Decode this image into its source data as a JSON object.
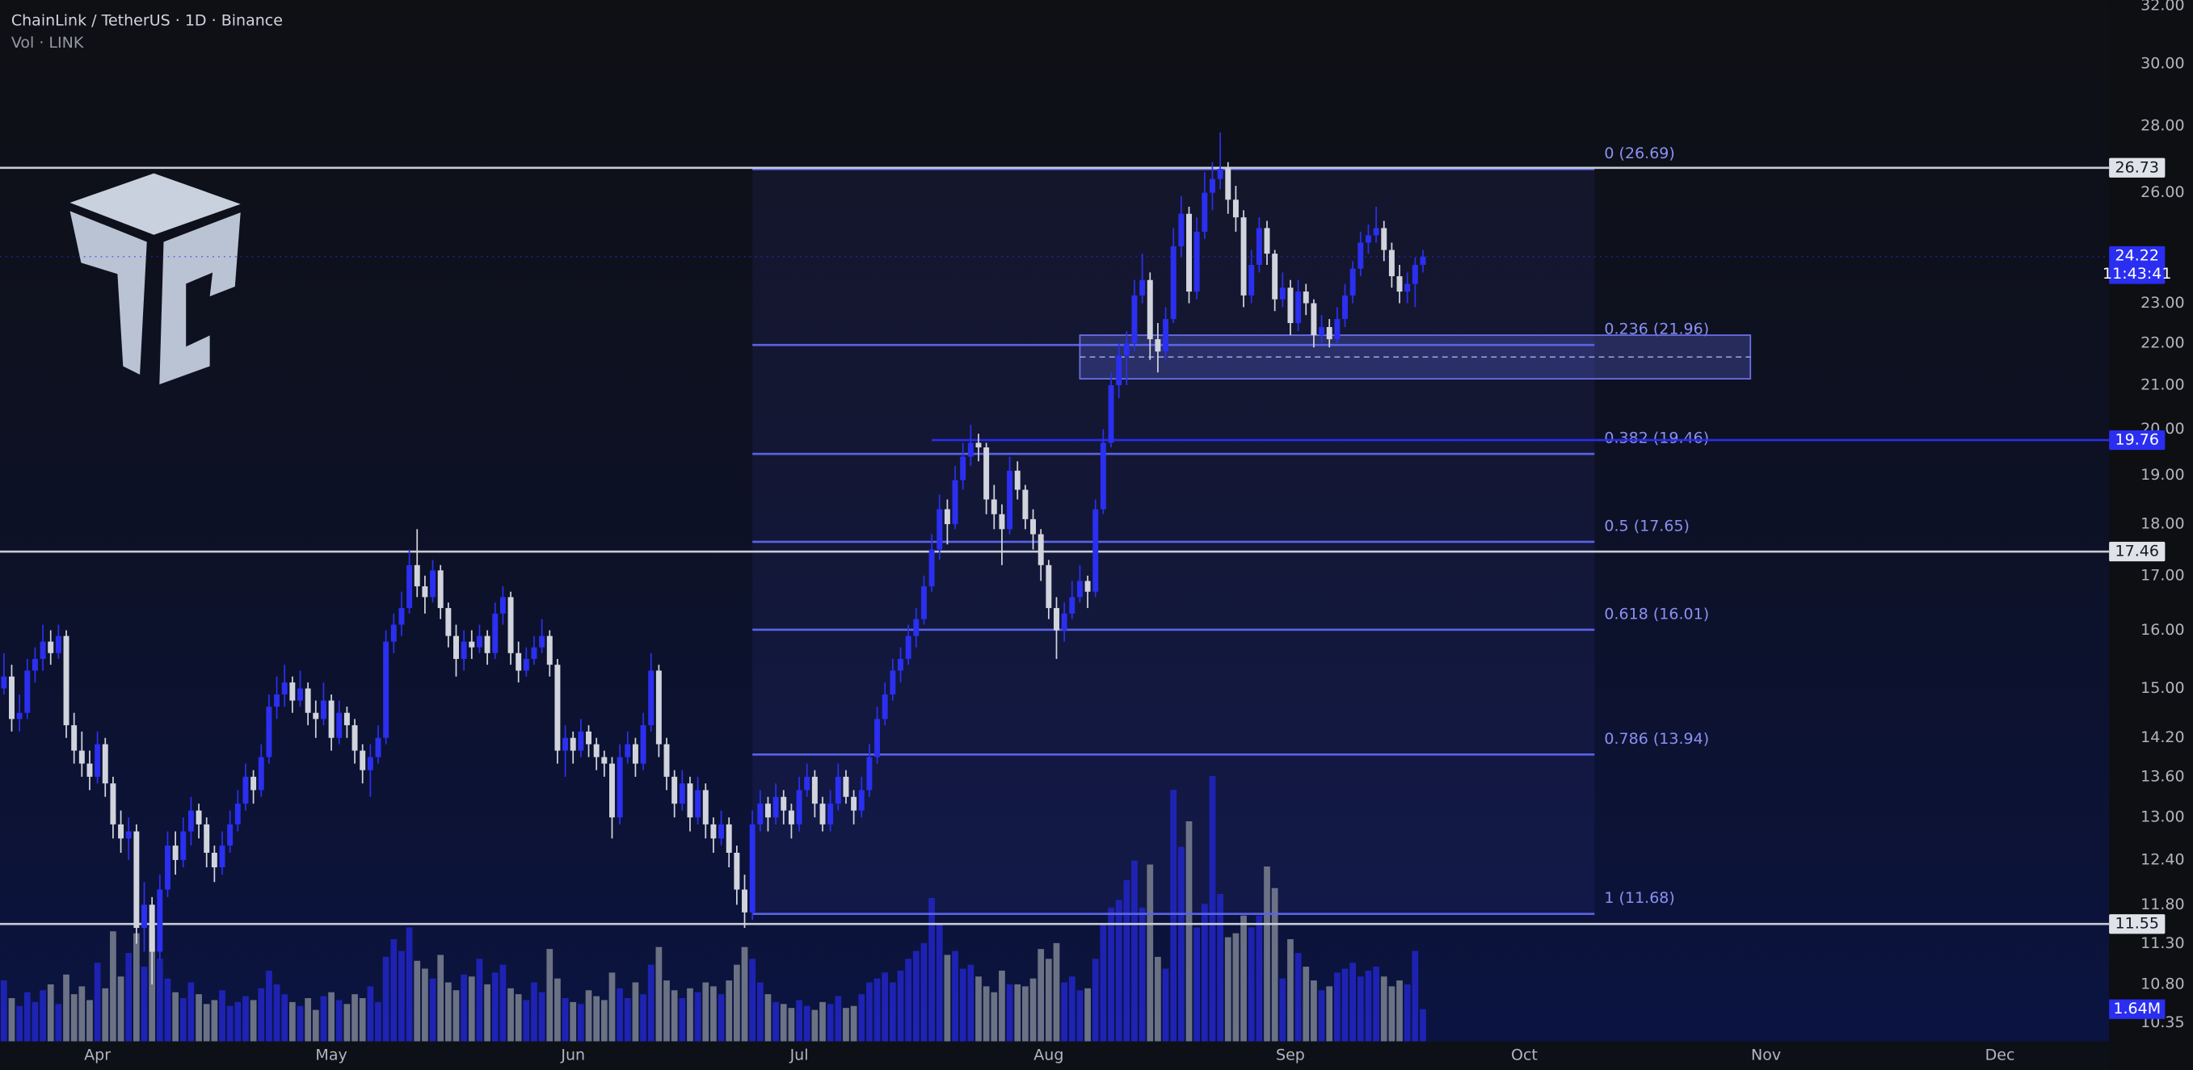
{
  "chart_data": {
    "type": "candlestick",
    "title": "ChainLink / TetherUS · 1D · Binance",
    "subtitle": "Vol · LINK",
    "log_scale": true,
    "grid": false,
    "up_color": "#2b2ff0",
    "down_color": "#d1d4dc",
    "ylim": [
      10.14,
      32.2
    ],
    "yticks": [
      {
        "value": 32,
        "label": "32.00"
      },
      {
        "value": 30,
        "label": "30.00"
      },
      {
        "value": 28,
        "label": "28.00"
      },
      {
        "value": 26,
        "label": "26.00"
      },
      {
        "value": 23,
        "label": "23.00"
      },
      {
        "value": 22,
        "label": "22.00"
      },
      {
        "value": 21,
        "label": "21.00"
      },
      {
        "value": 20,
        "label": "20.00"
      },
      {
        "value": 19,
        "label": "19.00"
      },
      {
        "value": 18,
        "label": "18.00"
      },
      {
        "value": 17,
        "label": "17.00"
      },
      {
        "value": 16,
        "label": "16.00"
      },
      {
        "value": 15,
        "label": "15.00"
      },
      {
        "value": 14.2,
        "label": "14.20"
      },
      {
        "value": 13.6,
        "label": "13.60"
      },
      {
        "value": 13,
        "label": "13.00"
      },
      {
        "value": 12.4,
        "label": "12.40"
      },
      {
        "value": 11.8,
        "label": "11.80"
      },
      {
        "value": 11.3,
        "label": "11.30"
      },
      {
        "value": 10.8,
        "label": "10.80"
      },
      {
        "value": 10.35,
        "label": "10.35"
      }
    ],
    "xlim": [
      -0.5,
      270
    ],
    "xticks": [
      {
        "value": 12,
        "label": "Apr"
      },
      {
        "value": 42,
        "label": "May"
      },
      {
        "value": 73,
        "label": "Jun"
      },
      {
        "value": 102,
        "label": "Jul"
      },
      {
        "value": 134,
        "label": "Aug"
      },
      {
        "value": 165,
        "label": "Sep"
      },
      {
        "value": 195,
        "label": "Oct"
      },
      {
        "value": 226,
        "label": "Nov"
      },
      {
        "value": 256,
        "label": "Dec"
      }
    ],
    "candles": [
      [
        15.0,
        15.6,
        14.9,
        15.2
      ],
      [
        15.2,
        15.4,
        14.3,
        14.5
      ],
      [
        14.5,
        14.9,
        14.3,
        14.6
      ],
      [
        14.6,
        15.5,
        14.5,
        15.3
      ],
      [
        15.3,
        15.7,
        15.1,
        15.5
      ],
      [
        15.5,
        16.1,
        15.3,
        15.8
      ],
      [
        15.8,
        16.0,
        15.4,
        15.6
      ],
      [
        15.6,
        16.1,
        15.5,
        15.9
      ],
      [
        15.9,
        16.0,
        14.2,
        14.4
      ],
      [
        14.4,
        14.6,
        13.8,
        14.0
      ],
      [
        14.0,
        14.3,
        13.6,
        13.8
      ],
      [
        13.8,
        14.0,
        13.4,
        13.6
      ],
      [
        13.6,
        14.3,
        13.5,
        14.1
      ],
      [
        14.1,
        14.2,
        13.3,
        13.5
      ],
      [
        13.5,
        13.6,
        12.7,
        12.9
      ],
      [
        12.9,
        13.1,
        12.5,
        12.7
      ],
      [
        12.7,
        13.0,
        12.4,
        12.8
      ],
      [
        12.8,
        12.9,
        11.3,
        11.5
      ],
      [
        11.5,
        12.1,
        11.2,
        11.8
      ],
      [
        11.8,
        11.9,
        10.8,
        11.2
      ],
      [
        11.2,
        12.2,
        11.1,
        12.0
      ],
      [
        12.0,
        12.8,
        11.9,
        12.6
      ],
      [
        12.6,
        12.8,
        12.2,
        12.4
      ],
      [
        12.4,
        13.0,
        12.3,
        12.8
      ],
      [
        12.8,
        13.3,
        12.6,
        13.1
      ],
      [
        13.1,
        13.2,
        12.7,
        12.9
      ],
      [
        12.9,
        13.0,
        12.3,
        12.5
      ],
      [
        12.5,
        12.6,
        12.1,
        12.3
      ],
      [
        12.3,
        12.8,
        12.2,
        12.6
      ],
      [
        12.6,
        13.1,
        12.5,
        12.9
      ],
      [
        12.9,
        13.4,
        12.8,
        13.2
      ],
      [
        13.2,
        13.8,
        13.1,
        13.6
      ],
      [
        13.6,
        13.7,
        13.2,
        13.4
      ],
      [
        13.4,
        14.1,
        13.3,
        13.9
      ],
      [
        13.9,
        14.9,
        13.8,
        14.7
      ],
      [
        14.7,
        15.2,
        14.5,
        14.9
      ],
      [
        14.9,
        15.4,
        14.7,
        15.1
      ],
      [
        15.1,
        15.2,
        14.6,
        14.8
      ],
      [
        14.8,
        15.3,
        14.7,
        15.0
      ],
      [
        15.0,
        15.1,
        14.4,
        14.6
      ],
      [
        14.6,
        14.8,
        14.2,
        14.5
      ],
      [
        14.5,
        15.1,
        14.4,
        14.8
      ],
      [
        14.8,
        14.9,
        14.0,
        14.2
      ],
      [
        14.2,
        14.8,
        14.1,
        14.6
      ],
      [
        14.6,
        14.7,
        14.2,
        14.4
      ],
      [
        14.4,
        14.5,
        13.8,
        14.0
      ],
      [
        14.0,
        14.1,
        13.5,
        13.7
      ],
      [
        13.7,
        14.1,
        13.3,
        13.9
      ],
      [
        13.9,
        14.4,
        13.8,
        14.2
      ],
      [
        14.2,
        16.0,
        14.1,
        15.8
      ],
      [
        15.8,
        16.3,
        15.6,
        16.1
      ],
      [
        16.1,
        16.7,
        15.9,
        16.4
      ],
      [
        16.4,
        17.5,
        16.3,
        17.2
      ],
      [
        17.2,
        17.9,
        16.6,
        16.8
      ],
      [
        16.8,
        17.0,
        16.3,
        16.6
      ],
      [
        16.6,
        17.3,
        16.5,
        17.1
      ],
      [
        17.1,
        17.2,
        16.2,
        16.4
      ],
      [
        16.4,
        16.5,
        15.7,
        15.9
      ],
      [
        15.9,
        16.1,
        15.2,
        15.5
      ],
      [
        15.5,
        16.0,
        15.3,
        15.8
      ],
      [
        15.8,
        16.0,
        15.5,
        15.7
      ],
      [
        15.7,
        16.1,
        15.6,
        15.9
      ],
      [
        15.9,
        16.0,
        15.4,
        15.6
      ],
      [
        15.6,
        16.5,
        15.5,
        16.3
      ],
      [
        16.3,
        16.8,
        16.1,
        16.6
      ],
      [
        16.6,
        16.7,
        15.4,
        15.6
      ],
      [
        15.6,
        15.8,
        15.1,
        15.3
      ],
      [
        15.3,
        15.7,
        15.2,
        15.5
      ],
      [
        15.5,
        15.9,
        15.4,
        15.7
      ],
      [
        15.7,
        16.2,
        15.6,
        15.9
      ],
      [
        15.9,
        16.0,
        15.2,
        15.4
      ],
      [
        15.4,
        15.5,
        13.8,
        14.0
      ],
      [
        14.0,
        14.4,
        13.6,
        14.2
      ],
      [
        14.2,
        14.3,
        13.8,
        14.0
      ],
      [
        14.0,
        14.5,
        13.9,
        14.3
      ],
      [
        14.3,
        14.4,
        13.9,
        14.1
      ],
      [
        14.1,
        14.2,
        13.7,
        13.9
      ],
      [
        13.9,
        14.0,
        13.6,
        13.8
      ],
      [
        13.8,
        13.9,
        12.7,
        13.0
      ],
      [
        13.0,
        14.1,
        12.9,
        13.9
      ],
      [
        13.9,
        14.3,
        13.8,
        14.1
      ],
      [
        14.1,
        14.2,
        13.6,
        13.8
      ],
      [
        13.8,
        14.6,
        13.7,
        14.4
      ],
      [
        14.4,
        15.6,
        14.3,
        15.3
      ],
      [
        15.3,
        15.4,
        13.9,
        14.1
      ],
      [
        14.1,
        14.2,
        13.4,
        13.6
      ],
      [
        13.6,
        13.7,
        13.0,
        13.2
      ],
      [
        13.2,
        13.7,
        13.1,
        13.5
      ],
      [
        13.5,
        13.6,
        12.8,
        13.0
      ],
      [
        13.0,
        13.6,
        12.9,
        13.4
      ],
      [
        13.4,
        13.5,
        12.7,
        12.9
      ],
      [
        12.9,
        13.0,
        12.5,
        12.7
      ],
      [
        12.7,
        13.1,
        12.6,
        12.9
      ],
      [
        12.9,
        13.0,
        12.3,
        12.5
      ],
      [
        12.5,
        12.6,
        11.8,
        12.0
      ],
      [
        12.0,
        12.2,
        11.5,
        11.7
      ],
      [
        11.7,
        13.1,
        11.6,
        12.9
      ],
      [
        12.9,
        13.4,
        12.8,
        13.2
      ],
      [
        13.2,
        13.3,
        12.8,
        13.0
      ],
      [
        13.0,
        13.5,
        12.9,
        13.3
      ],
      [
        13.3,
        13.4,
        12.9,
        13.1
      ],
      [
        13.1,
        13.2,
        12.7,
        12.9
      ],
      [
        12.9,
        13.6,
        12.8,
        13.4
      ],
      [
        13.4,
        13.8,
        13.3,
        13.6
      ],
      [
        13.6,
        13.7,
        13.0,
        13.2
      ],
      [
        13.2,
        13.3,
        12.8,
        12.9
      ],
      [
        12.9,
        13.4,
        12.8,
        13.2
      ],
      [
        13.2,
        13.8,
        13.1,
        13.6
      ],
      [
        13.6,
        13.7,
        13.2,
        13.3
      ],
      [
        13.3,
        13.4,
        12.9,
        13.1
      ],
      [
        13.1,
        13.6,
        13.0,
        13.4
      ],
      [
        13.4,
        14.1,
        13.3,
        13.9
      ],
      [
        13.9,
        14.7,
        13.8,
        14.5
      ],
      [
        14.5,
        15.1,
        14.4,
        14.9
      ],
      [
        14.9,
        15.5,
        14.8,
        15.3
      ],
      [
        15.3,
        15.7,
        15.1,
        15.5
      ],
      [
        15.5,
        16.1,
        15.4,
        15.9
      ],
      [
        15.9,
        16.4,
        15.7,
        16.2
      ],
      [
        16.2,
        17.0,
        16.1,
        16.8
      ],
      [
        16.8,
        17.8,
        16.7,
        17.5
      ],
      [
        17.5,
        18.6,
        17.3,
        18.3
      ],
      [
        18.3,
        18.5,
        17.6,
        18.0
      ],
      [
        18.0,
        19.2,
        17.9,
        18.9
      ],
      [
        18.9,
        19.7,
        18.7,
        19.4
      ],
      [
        19.4,
        20.1,
        19.2,
        19.7
      ],
      [
        19.7,
        19.9,
        19.3,
        19.6
      ],
      [
        19.6,
        19.7,
        18.2,
        18.5
      ],
      [
        18.5,
        18.8,
        17.9,
        18.2
      ],
      [
        18.2,
        18.4,
        17.2,
        17.9
      ],
      [
        17.9,
        19.4,
        17.8,
        19.1
      ],
      [
        19.1,
        19.3,
        18.5,
        18.7
      ],
      [
        18.7,
        18.8,
        17.9,
        18.1
      ],
      [
        18.1,
        18.3,
        17.5,
        17.8
      ],
      [
        17.8,
        17.9,
        16.9,
        17.2
      ],
      [
        17.2,
        17.3,
        16.2,
        16.4
      ],
      [
        16.4,
        16.6,
        15.5,
        16.0
      ],
      [
        16.0,
        16.5,
        15.8,
        16.3
      ],
      [
        16.3,
        16.9,
        16.2,
        16.6
      ],
      [
        16.6,
        17.2,
        16.5,
        16.9
      ],
      [
        16.9,
        17.0,
        16.4,
        16.7
      ],
      [
        16.7,
        18.5,
        16.6,
        18.3
      ],
      [
        18.3,
        20.0,
        18.2,
        19.7
      ],
      [
        19.7,
        21.3,
        19.6,
        21.0
      ],
      [
        21.0,
        22.0,
        20.7,
        21.7
      ],
      [
        21.7,
        22.3,
        21.0,
        22.0
      ],
      [
        22.0,
        23.6,
        21.8,
        23.2
      ],
      [
        23.2,
        24.3,
        23.0,
        23.6
      ],
      [
        23.6,
        23.8,
        21.6,
        22.1
      ],
      [
        22.1,
        22.5,
        21.3,
        21.8
      ],
      [
        21.8,
        22.9,
        21.6,
        22.6
      ],
      [
        22.6,
        25.0,
        22.5,
        24.5
      ],
      [
        24.5,
        25.9,
        24.2,
        25.4
      ],
      [
        25.4,
        25.6,
        23.0,
        23.3
      ],
      [
        23.3,
        25.3,
        23.1,
        24.9
      ],
      [
        24.9,
        26.6,
        24.7,
        26.0
      ],
      [
        26.0,
        26.9,
        25.5,
        26.4
      ],
      [
        26.4,
        27.8,
        26.1,
        26.7
      ],
      [
        26.7,
        26.9,
        25.4,
        25.8
      ],
      [
        25.8,
        26.2,
        24.9,
        25.3
      ],
      [
        25.3,
        25.5,
        22.9,
        23.2
      ],
      [
        23.2,
        24.4,
        23.0,
        24.0
      ],
      [
        24.0,
        25.3,
        23.8,
        25.0
      ],
      [
        25.0,
        25.2,
        24.0,
        24.3
      ],
      [
        24.3,
        24.4,
        22.8,
        23.1
      ],
      [
        23.1,
        23.8,
        22.9,
        23.4
      ],
      [
        23.4,
        23.6,
        22.2,
        22.5
      ],
      [
        22.5,
        23.6,
        22.3,
        23.3
      ],
      [
        23.3,
        23.5,
        22.7,
        23.0
      ],
      [
        23.0,
        23.1,
        21.9,
        22.2
      ],
      [
        22.2,
        22.7,
        22.0,
        22.4
      ],
      [
        22.4,
        22.6,
        21.9,
        22.1
      ],
      [
        22.1,
        22.9,
        22.0,
        22.6
      ],
      [
        22.6,
        23.5,
        22.4,
        23.2
      ],
      [
        23.2,
        24.1,
        23.0,
        23.9
      ],
      [
        23.9,
        24.9,
        23.7,
        24.6
      ],
      [
        24.6,
        25.1,
        24.3,
        24.8
      ],
      [
        24.8,
        25.6,
        24.6,
        25.0
      ],
      [
        25.0,
        25.2,
        24.1,
        24.4
      ],
      [
        24.4,
        24.6,
        23.4,
        23.7
      ],
      [
        23.7,
        24.0,
        23.0,
        23.3
      ],
      [
        23.3,
        23.8,
        23.0,
        23.5
      ],
      [
        23.5,
        24.2,
        22.9,
        24.0
      ],
      [
        24.0,
        24.4,
        23.8,
        24.22
      ]
    ],
    "volume": {
      "ylim": [
        0,
        53
      ],
      "up_color": "#2226c8",
      "down_color": "#7d8290",
      "values": [
        3.1,
        2.2,
        1.8,
        2.5,
        2.0,
        2.6,
        2.9,
        1.9,
        3.4,
        2.4,
        2.8,
        2.1,
        4.0,
        2.7,
        5.6,
        3.3,
        4.5,
        5.5,
        3.8,
        5.8,
        4.2,
        3.2,
        2.5,
        2.2,
        3.0,
        2.4,
        1.9,
        2.1,
        2.6,
        1.8,
        2.0,
        2.3,
        2.1,
        2.7,
        3.6,
        2.9,
        2.4,
        2.0,
        1.8,
        2.2,
        1.6,
        2.3,
        2.5,
        2.1,
        1.9,
        2.4,
        2.2,
        2.8,
        2.0,
        4.3,
        5.2,
        4.6,
        5.8,
        4.1,
        3.7,
        3.2,
        4.4,
        3.0,
        2.6,
        3.4,
        3.3,
        4.2,
        2.9,
        3.5,
        3.9,
        2.7,
        2.4,
        2.1,
        3.0,
        2.5,
        4.7,
        3.2,
        2.2,
        2.0,
        1.9,
        2.6,
        2.3,
        2.1,
        3.5,
        2.7,
        2.2,
        3.0,
        2.4,
        3.9,
        4.8,
        3.1,
        2.6,
        2.2,
        2.7,
        2.5,
        3.0,
        2.8,
        2.4,
        3.1,
        3.9,
        4.8,
        4.2,
        3.0,
        2.4,
        2.0,
        1.9,
        1.7,
        2.1,
        1.8,
        1.6,
        2.0,
        1.9,
        2.3,
        1.7,
        1.8,
        2.4,
        3.0,
        3.2,
        3.5,
        3.0,
        3.6,
        4.2,
        4.6,
        5.0,
        7.3,
        6.0,
        4.4,
        4.6,
        3.7,
        3.9,
        3.3,
        2.8,
        2.5,
        3.6,
        2.9,
        2.9,
        2.8,
        3.2,
        4.7,
        4.2,
        5.0,
        3.0,
        3.3,
        2.6,
        2.7,
        4.2,
        6.0,
        6.8,
        7.2,
        8.2,
        9.2,
        6.8,
        9.0,
        4.3,
        3.7,
        12.8,
        9.9,
        11.2,
        5.8,
        7.0,
        13.5,
        7.5,
        5.3,
        5.5,
        6.4,
        5.8,
        6.4,
        8.9,
        7.8,
        3.2,
        5.2,
        4.5,
        3.8,
        3.1,
        2.6,
        2.8,
        3.5,
        3.7,
        4.0,
        3.3,
        3.6,
        3.8,
        3.3,
        2.8,
        3.1,
        2.9,
        4.6,
        1.64
      ],
      "last_label": "1.64M"
    },
    "fib": {
      "start": 96,
      "end": 204,
      "color": "#5b63e6",
      "levels": [
        {
          "value": 26.69,
          "label": "0 (26.69)"
        },
        {
          "value": 21.96,
          "label": "0.236 (21.96)"
        },
        {
          "value": 19.46,
          "label": "0.382 (19.46)"
        },
        {
          "value": 17.65,
          "label": "0.5 (17.65)"
        },
        {
          "value": 16.01,
          "label": "0.618 (16.01)"
        },
        {
          "value": 13.94,
          "label": "0.786 (13.94)"
        },
        {
          "value": 11.68,
          "label": "1 (11.68)"
        }
      ]
    },
    "zone": {
      "start": 138,
      "end": 224,
      "top": 22.2,
      "bottom": 21.15
    },
    "price_lines": [
      {
        "value": 26.73,
        "color": "#c8ccd6"
      },
      {
        "value": 19.76,
        "color": "#2a2ef0",
        "start": 119
      },
      {
        "value": 17.46,
        "color": "#c8ccd6"
      },
      {
        "value": 11.55,
        "color": "#c8ccd6"
      }
    ],
    "last_price": {
      "value": 24.22,
      "countdown": "11:43:41",
      "color": "#2a2ef0"
    }
  }
}
